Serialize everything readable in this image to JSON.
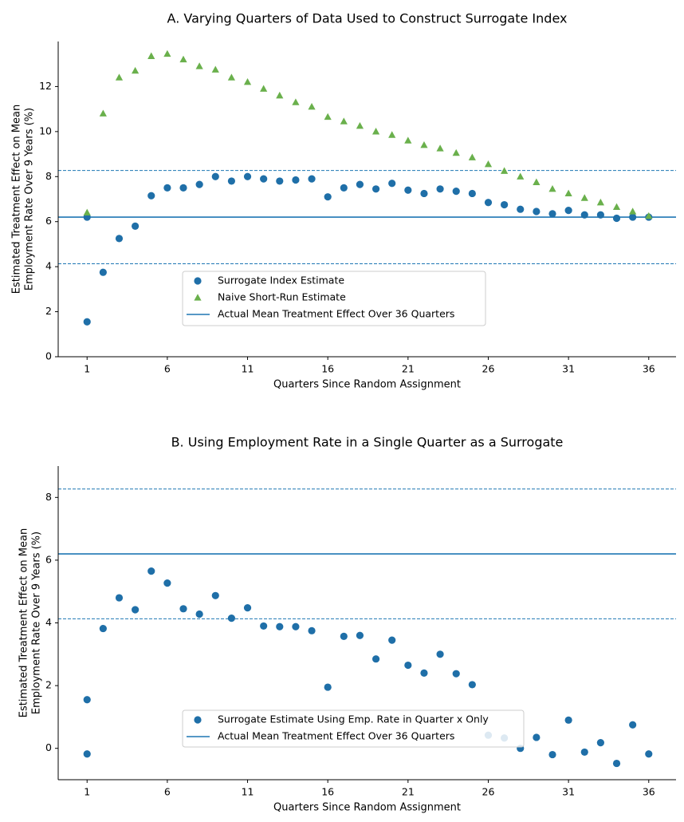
{
  "chart_data": [
    {
      "type": "scatter",
      "title": "A. Varying Quarters of Data Used to Construct Surrogate Index",
      "xlabel": "Quarters Since Random Assignment",
      "ylabel_lines": [
        "Estimated Treatment Effect on Mean",
        "Employment Rate Over 9 Years (%)"
      ],
      "xlim": [
        -0.8,
        37.7
      ],
      "ylim": [
        0,
        14
      ],
      "xticks": [
        1,
        6,
        11,
        16,
        21,
        26,
        31,
        36
      ],
      "yticks": [
        0,
        2,
        4,
        6,
        8,
        10,
        12
      ],
      "legend_position": "lower-center",
      "hlines": [
        {
          "name": "Actual Mean Treatment Effect Over 36 Quarters",
          "y": 6.2,
          "style": "solid"
        },
        {
          "y": 8.27,
          "style": "dashed"
        },
        {
          "y": 4.13,
          "style": "dashed"
        }
      ],
      "series": [
        {
          "name": "Surrogate Index Estimate",
          "marker": "circle",
          "color": "#1f6fa8",
          "points": [
            [
              1,
              1.55
            ],
            [
              1,
              6.2
            ],
            [
              2,
              3.75
            ],
            [
              3,
              5.25
            ],
            [
              4,
              5.8
            ],
            [
              5,
              7.15
            ],
            [
              6,
              7.5
            ],
            [
              7,
              7.5
            ],
            [
              8,
              7.65
            ],
            [
              9,
              8.0
            ],
            [
              10,
              7.8
            ],
            [
              11,
              8.0
            ],
            [
              12,
              7.9
            ],
            [
              13,
              7.8
            ],
            [
              14,
              7.85
            ],
            [
              15,
              7.9
            ],
            [
              16,
              7.1
            ],
            [
              17,
              7.5
            ],
            [
              18,
              7.65
            ],
            [
              19,
              7.45
            ],
            [
              20,
              7.7
            ],
            [
              21,
              7.4
            ],
            [
              22,
              7.25
            ],
            [
              23,
              7.45
            ],
            [
              24,
              7.35
            ],
            [
              25,
              7.25
            ],
            [
              26,
              6.85
            ],
            [
              27,
              6.75
            ],
            [
              28,
              6.55
            ],
            [
              29,
              6.45
            ],
            [
              30,
              6.35
            ],
            [
              31,
              6.5
            ],
            [
              32,
              6.3
            ],
            [
              33,
              6.3
            ],
            [
              34,
              6.15
            ],
            [
              35,
              6.2
            ],
            [
              36,
              6.2
            ]
          ]
        },
        {
          "name": "Naive Short-Run Estimate",
          "marker": "triangle",
          "color": "#6ab04c",
          "points": [
            [
              1,
              6.4
            ],
            [
              2,
              10.8
            ],
            [
              3,
              12.4
            ],
            [
              4,
              12.7
            ],
            [
              5,
              13.35
            ],
            [
              6,
              13.45
            ],
            [
              7,
              13.2
            ],
            [
              8,
              12.9
            ],
            [
              9,
              12.75
            ],
            [
              10,
              12.4
            ],
            [
              11,
              12.2
            ],
            [
              12,
              11.9
            ],
            [
              13,
              11.6
            ],
            [
              14,
              11.3
            ],
            [
              15,
              11.1
            ],
            [
              16,
              10.65
            ],
            [
              17,
              10.45
            ],
            [
              18,
              10.25
            ],
            [
              19,
              10.0
            ],
            [
              20,
              9.85
            ],
            [
              21,
              9.6
            ],
            [
              22,
              9.4
            ],
            [
              23,
              9.25
            ],
            [
              24,
              9.05
            ],
            [
              25,
              8.85
            ],
            [
              26,
              8.55
            ],
            [
              27,
              8.25
            ],
            [
              28,
              8.0
            ],
            [
              29,
              7.75
            ],
            [
              30,
              7.45
            ],
            [
              31,
              7.25
            ],
            [
              32,
              7.05
            ],
            [
              33,
              6.85
            ],
            [
              34,
              6.65
            ],
            [
              35,
              6.45
            ],
            [
              36,
              6.25
            ]
          ]
        }
      ]
    },
    {
      "type": "scatter",
      "title": "B. Using Employment Rate in a Single Quarter as a Surrogate",
      "xlabel": "Quarters Since Random Assignment",
      "ylabel_lines": [
        "Estimated Treatment Effect on Mean",
        "Employment Rate Over 9 Years (%)"
      ],
      "xlim": [
        -0.8,
        37.7
      ],
      "ylim": [
        -1.0,
        9.0
      ],
      "xticks": [
        1,
        6,
        11,
        16,
        21,
        26,
        31,
        36
      ],
      "yticks": [
        0,
        2,
        4,
        6,
        8
      ],
      "legend_position": "lower-center",
      "hlines": [
        {
          "name": "Actual Mean Treatment Effect Over 36 Quarters",
          "y": 6.2,
          "style": "solid"
        },
        {
          "y": 8.27,
          "style": "dashed"
        },
        {
          "y": 4.13,
          "style": "dashed"
        }
      ],
      "series": [
        {
          "name": "Surrogate Estimate Using Emp. Rate in Quarter x Only",
          "marker": "circle",
          "color": "#1f6fa8",
          "points": [
            [
              1,
              1.55
            ],
            [
              1,
              -0.18
            ],
            [
              2,
              3.82
            ],
            [
              3,
              4.8
            ],
            [
              4,
              4.42
            ],
            [
              5,
              5.65
            ],
            [
              6,
              5.27
            ],
            [
              7,
              4.45
            ],
            [
              8,
              4.28
            ],
            [
              9,
              4.87
            ],
            [
              10,
              4.15
            ],
            [
              11,
              4.48
            ],
            [
              12,
              3.9
            ],
            [
              13,
              3.88
            ],
            [
              14,
              3.88
            ],
            [
              15,
              3.75
            ],
            [
              16,
              1.95
            ],
            [
              17,
              3.57
            ],
            [
              18,
              3.6
            ],
            [
              19,
              2.85
            ],
            [
              20,
              3.45
            ],
            [
              21,
              2.65
            ],
            [
              22,
              2.4
            ],
            [
              23,
              3.0
            ],
            [
              24,
              2.38
            ],
            [
              25,
              2.03
            ],
            [
              26,
              0.42
            ],
            [
              27,
              0.33
            ],
            [
              28,
              0.0
            ],
            [
              29,
              0.35
            ],
            [
              30,
              -0.2
            ],
            [
              31,
              0.9
            ],
            [
              32,
              -0.12
            ],
            [
              33,
              0.18
            ],
            [
              34,
              -0.48
            ],
            [
              35,
              0.75
            ],
            [
              36,
              -0.18
            ]
          ]
        }
      ]
    }
  ]
}
